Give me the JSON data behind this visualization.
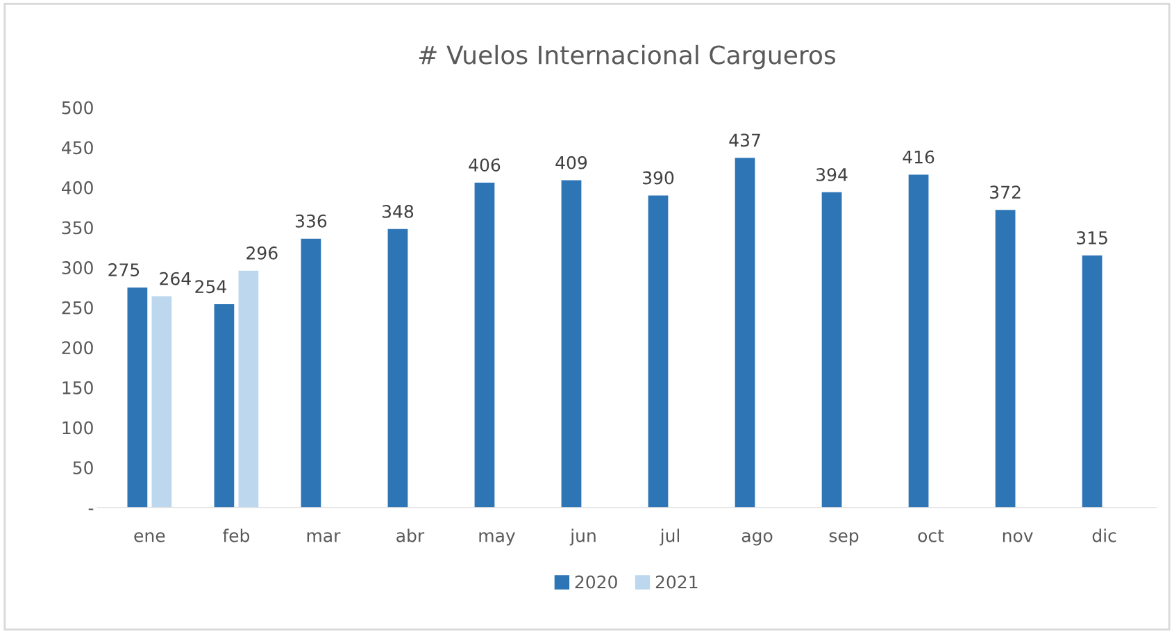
{
  "chart_data": {
    "type": "bar",
    "title": "# Vuelos Internacional Cargueros",
    "categories": [
      "ene",
      "feb",
      "mar",
      "abr",
      "may",
      "jun",
      "jul",
      "ago",
      "sep",
      "oct",
      "nov",
      "dic"
    ],
    "series": [
      {
        "name": "2020",
        "color": "#2e75b6",
        "values": [
          275,
          254,
          336,
          348,
          406,
          409,
          390,
          437,
          394,
          416,
          372,
          315
        ]
      },
      {
        "name": "2021",
        "color": "#bdd7ee",
        "values": [
          264,
          296,
          null,
          null,
          null,
          null,
          null,
          null,
          null,
          null,
          null,
          null
        ]
      }
    ],
    "ylim": [
      0,
      500
    ],
    "yticks": [
      {
        "value": 0,
        "label": "-"
      },
      50,
      100,
      150,
      200,
      250,
      300,
      350,
      400,
      450,
      500
    ],
    "data_labels": true,
    "grid": false,
    "legend": "bottom"
  }
}
